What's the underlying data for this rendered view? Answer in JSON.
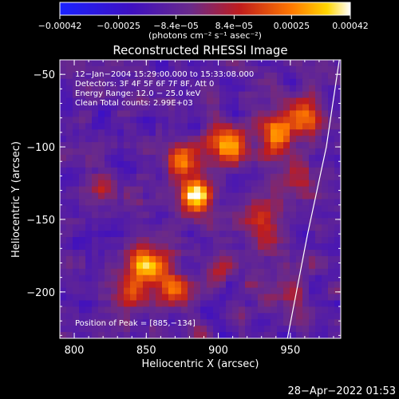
{
  "chart_data": {
    "type": "heatmap",
    "title": "Reconstructed RHESSI Image",
    "xlabel": "Heliocentric X (arcsec)",
    "ylabel": "Heliocentric Y (arcsec)",
    "xlim": [
      790,
      985
    ],
    "ylim": [
      -232,
      -40
    ],
    "x_ticks": [
      800,
      850,
      900,
      950
    ],
    "y_ticks": [
      -50,
      -100,
      -150,
      -200
    ],
    "x_tick_labels": [
      "800",
      "850",
      "900",
      "950"
    ],
    "y_tick_labels": [
      "−50",
      "−100",
      "−150",
      "−200"
    ],
    "colorbar": {
      "range": [
        -0.00042,
        0.00042
      ],
      "ticks": [
        -0.00042,
        -0.00025,
        -8.4e-05,
        8.4e-05,
        0.00025,
        0.00042
      ],
      "tick_labels": [
        "−0.00042",
        "−0.00025",
        "−8.4e−05",
        "8.4e−05",
        "0.00025",
        "0.00042"
      ],
      "unit_label": "(photons cm⁻² s⁻¹ asec⁻²)"
    },
    "annotations": [
      "12−Jan−2004 15:29:00.000 to 15:33:08.000",
      "Detectors: 3F 4F 5F 6F 7F 8F, Att 0",
      "Energy Range: 12.0 − 25.0 keV",
      "Clean    Total counts: 2.99E+03"
    ],
    "peak_label": "Position of Peak = [885,−134]",
    "peak": [
      885,
      -134
    ],
    "bright_sources": [
      {
        "x": 885,
        "y": -134,
        "amplitude": 1.0,
        "sigma": 7
      },
      {
        "x": 875,
        "y": -110,
        "amplitude": 0.7,
        "sigma": 8
      },
      {
        "x": 905,
        "y": -100,
        "amplitude": 0.75,
        "sigma": 9
      },
      {
        "x": 940,
        "y": -90,
        "amplitude": 0.7,
        "sigma": 9
      },
      {
        "x": 960,
        "y": -80,
        "amplitude": 0.65,
        "sigma": 8
      },
      {
        "x": 850,
        "y": -180,
        "amplitude": 0.8,
        "sigma": 9
      },
      {
        "x": 870,
        "y": -195,
        "amplitude": 0.7,
        "sigma": 8
      },
      {
        "x": 840,
        "y": -200,
        "amplitude": 0.55,
        "sigma": 8
      },
      {
        "x": 930,
        "y": -150,
        "amplitude": 0.5,
        "sigma": 10
      },
      {
        "x": 955,
        "y": -120,
        "amplitude": 0.55,
        "sigma": 8
      },
      {
        "x": 820,
        "y": -130,
        "amplitude": 0.45,
        "sigma": 7
      },
      {
        "x": 900,
        "y": -185,
        "amplitude": 0.35,
        "sigma": 7
      },
      {
        "x": 945,
        "y": -200,
        "amplitude": 0.4,
        "sigma": 8
      }
    ],
    "limb_curve": [
      [
        984,
        -40
      ],
      [
        975,
        -100
      ],
      [
        962,
        -160
      ],
      [
        948,
        -232
      ]
    ],
    "grid": false
  },
  "timestamp": "28−Apr−2022 01:53",
  "colors": {
    "background": "#000000",
    "foreground": "#ffffff",
    "colormap": [
      "#1030ff",
      "#5a1ca8",
      "#6a2a8a",
      "#c01c1c",
      "#ff7a00",
      "#ffd600",
      "#ffffff"
    ]
  }
}
